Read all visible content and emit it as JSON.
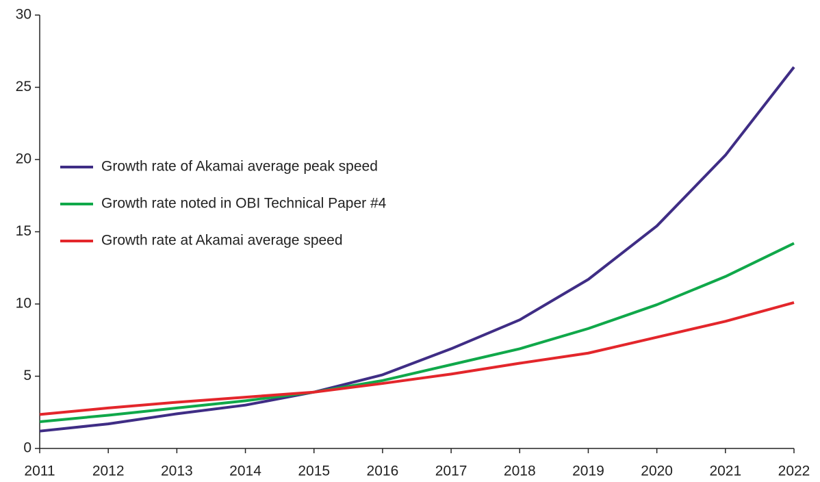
{
  "chart_data": {
    "type": "line",
    "x": [
      2011,
      2012,
      2013,
      2014,
      2015,
      2016,
      2017,
      2018,
      2019,
      2020,
      2021,
      2022
    ],
    "series": [
      {
        "name": "Growth rate of Akamai average peak speed",
        "color": "#3f2d85",
        "values": [
          1.2,
          1.7,
          2.4,
          3.0,
          3.9,
          5.1,
          6.9,
          8.9,
          11.7,
          15.4,
          20.3,
          26.4
        ]
      },
      {
        "name": "Growth rate noted in OBI Technical Paper #4",
        "color": "#10a84a",
        "values": [
          1.85,
          2.3,
          2.8,
          3.3,
          3.9,
          4.7,
          5.8,
          6.9,
          8.3,
          9.95,
          11.9,
          14.2
        ]
      },
      {
        "name": "Growth rate at Akamai average speed",
        "color": "#e3262b",
        "values": [
          2.35,
          2.8,
          3.2,
          3.55,
          3.9,
          4.5,
          5.15,
          5.9,
          6.6,
          7.7,
          8.8,
          10.1
        ]
      }
    ],
    "xlim": [
      2011,
      2022
    ],
    "xticks": [
      2011,
      2012,
      2013,
      2014,
      2015,
      2016,
      2017,
      2018,
      2019,
      2020,
      2021,
      2022
    ],
    "ylim": [
      0,
      30
    ],
    "yticks": [
      0,
      5,
      10,
      15,
      20,
      25,
      30
    ],
    "legend": "left"
  }
}
